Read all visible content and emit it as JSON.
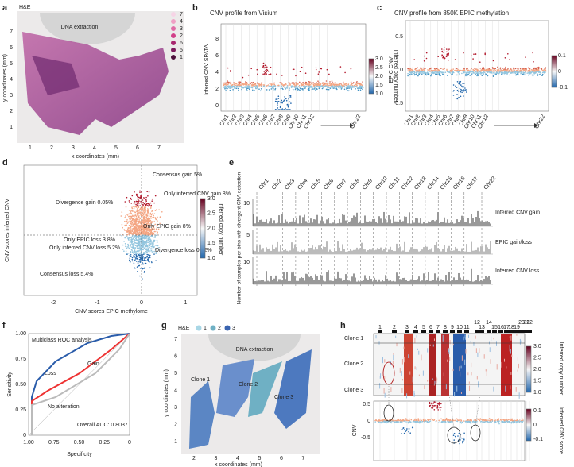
{
  "a": {
    "label": "a",
    "stain": "H&E",
    "region": "DNA extraction",
    "legend": [
      7,
      4,
      3,
      2,
      6,
      5,
      1
    ],
    "yticks": [
      1,
      2,
      3,
      4,
      5,
      6,
      7
    ],
    "xticks": [
      1,
      2,
      3,
      4,
      5,
      6,
      7
    ],
    "xlabel": "x coordinates (mm)",
    "ylabel": "y coordinates (mm)"
  },
  "b": {
    "label": "b",
    "title": "CNV profile from Visium",
    "ylabel": "Inferred CNV SPATA",
    "yticks": [
      0,
      2,
      4,
      6,
      8
    ],
    "colorbar_label": "Inferred copy number",
    "colorbar_ticks": [
      "1.0",
      "1.5",
      "2.0",
      "2.5",
      "3.0"
    ],
    "chromosomes": [
      "Chr1",
      "Chr2",
      "Chr3",
      "Chr4",
      "Chr5",
      "Chr6",
      "Chr7",
      "Chr8",
      "Chr9",
      "Chr10",
      "Chr11",
      "Chr12",
      "Chr22"
    ]
  },
  "c": {
    "label": "c",
    "title": "CNV profile from 850K EPIC methylation",
    "ylabel": "EPIC CNV",
    "yticks": [
      "-0.5",
      0,
      "0.5"
    ],
    "colorbar_label": "Inferred CNV score (EPIC)",
    "colorbar_ticks": [
      "-0.1",
      0,
      "0.1"
    ],
    "chromosomes": [
      "Chr1",
      "Chr2",
      "Chr3",
      "Chr4",
      "Chr5",
      "Chr6",
      "Chr7",
      "Chr8",
      "Chr9",
      "Chr10",
      "Chr11",
      "Chr12",
      "Chr22"
    ]
  },
  "d": {
    "label": "d",
    "xlabel": "CNV scores EPIC methylome",
    "ylabel": "CNV scores inferred CNV",
    "xticks": [
      -2,
      -1,
      0,
      1
    ],
    "colorbar_label": "Inferred copy number",
    "colorbar_ticks": [
      "1.0",
      "1.5",
      "2.0",
      "2.5",
      "3.0"
    ],
    "annotations": [
      "Consensus gain 5%",
      "Only inferred CNV gain 8%",
      "Divergence gain 0.05%",
      "Only EPIC gain 8%",
      "Only EPIC loss 3.8%",
      "Only inferred CNV loss 5.2%",
      "Divergence loss 0.02%",
      "Consensus loss 5.4%"
    ]
  },
  "e": {
    "label": "e",
    "ylabel": "Number of samples per bins with divergent CNA detection",
    "chromosomes": [
      "Chr1",
      "Chr2",
      "Chr3",
      "Chr4",
      "Chr5",
      "Chr6",
      "Chr7",
      "Chr8",
      "Chr9",
      "Chr10",
      "Chr11",
      "Chr12",
      "Chr13",
      "Chr14",
      "Chr15",
      "Chr16",
      "Chr17",
      "Chr22"
    ],
    "tracks": [
      {
        "name": "Inferred CNV gain",
        "tick": 10
      },
      {
        "name": "EPIC gain/loss",
        "tick": 5
      },
      {
        "name": "Inferred CNV loss",
        "tick": 10
      }
    ]
  },
  "f": {
    "label": "f",
    "title": "Multiclass ROC analysis",
    "xlabel": "Specificity",
    "ylabel": "Sensitivity",
    "xticks": [
      "1.00",
      "0.75",
      "0.50",
      "0.25",
      "0"
    ],
    "yticks": [
      "0",
      "0.25",
      "0.50",
      "0.75",
      "1.00"
    ],
    "curves": [
      "Loss",
      "Gain",
      "No alteration"
    ],
    "auc": "Overall AUC: 0.8037"
  },
  "g": {
    "label": "g",
    "stain": "H&E",
    "legend": [
      1,
      2,
      3
    ],
    "region": "DNA extraction",
    "clones": [
      "Clone 1",
      "Clone 2",
      "Clone 3"
    ],
    "xticks": [
      2,
      3,
      4,
      5,
      6,
      7
    ],
    "yticks": [
      1,
      2,
      3,
      4,
      5,
      6,
      7
    ],
    "xlabel": "x coordinates (mm)",
    "ylabel": "y coordinates (mm)"
  },
  "h": {
    "label": "h",
    "chromosomes": [
      1,
      2,
      3,
      4,
      5,
      6,
      7,
      8,
      9,
      10,
      11,
      12,
      13,
      14,
      15,
      16,
      17,
      18,
      19,
      20,
      21,
      22
    ],
    "clones": [
      "Clone 1",
      "Clone 2",
      "Clone 3"
    ],
    "heatmap_colorbar_label": "Inferred copy number",
    "heatmap_colorbar_ticks": [
      "1.0",
      "1.5",
      "2.0",
      "2.5",
      "3.0"
    ],
    "ylabel": "CNV",
    "yticks": [
      "-0.5",
      0,
      "0.5"
    ],
    "colorbar_label": "Inferred CNV score",
    "colorbar_ticks": [
      "-0.1",
      0,
      "0.1"
    ]
  }
}
